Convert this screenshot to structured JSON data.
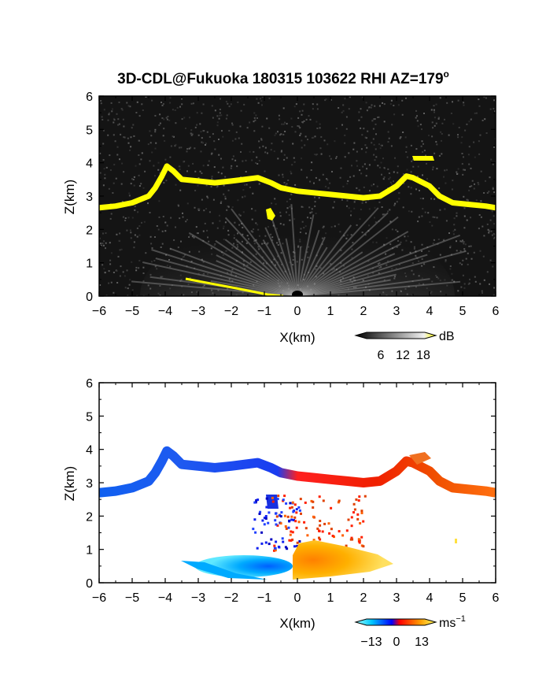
{
  "title": "3D-CDL@Fukuoka 180315 103622 RHI AZ=179",
  "title_superscript": "o",
  "chart_data": [
    {
      "type": "heatmap",
      "panel": "reflectivity",
      "xlabel": "X(km)",
      "ylabel": "Z(km)",
      "xlim": [
        -6,
        6
      ],
      "ylim": [
        0,
        6
      ],
      "xticks": [
        -6,
        -5,
        -4,
        -3,
        -2,
        -1,
        0,
        1,
        2,
        3,
        4,
        5,
        6
      ],
      "yticks": [
        0,
        1,
        2,
        3,
        4,
        5,
        6
      ],
      "cloud_base": [
        [
          -6.0,
          2.65
        ],
        [
          -5.5,
          2.7
        ],
        [
          -5.0,
          2.8
        ],
        [
          -4.5,
          3.0
        ],
        [
          -4.3,
          3.25
        ],
        [
          -4.1,
          3.6
        ],
        [
          -3.95,
          3.9
        ],
        [
          -3.75,
          3.75
        ],
        [
          -3.5,
          3.5
        ],
        [
          -3.0,
          3.45
        ],
        [
          -2.5,
          3.4
        ],
        [
          -2.0,
          3.45
        ],
        [
          -1.6,
          3.5
        ],
        [
          -1.2,
          3.55
        ],
        [
          -0.8,
          3.4
        ],
        [
          -0.5,
          3.25
        ],
        [
          0.0,
          3.15
        ],
        [
          0.5,
          3.1
        ],
        [
          1.0,
          3.05
        ],
        [
          1.5,
          3.0
        ],
        [
          2.0,
          2.95
        ],
        [
          2.5,
          3.0
        ],
        [
          3.0,
          3.3
        ],
        [
          3.3,
          3.6
        ],
        [
          3.5,
          3.55
        ],
        [
          4.0,
          3.3
        ],
        [
          4.3,
          3.0
        ],
        [
          4.7,
          2.8
        ],
        [
          5.2,
          2.75
        ],
        [
          5.7,
          2.7
        ],
        [
          6.0,
          2.65
        ]
      ],
      "colorbar": {
        "unit": "dB",
        "ticks": [
          "6",
          "12",
          "18"
        ]
      }
    },
    {
      "type": "heatmap",
      "panel": "doppler_velocity",
      "xlabel": "X(km)",
      "ylabel": "Z(km)",
      "xlim": [
        -6,
        6
      ],
      "ylim": [
        0,
        6
      ],
      "xticks": [
        -6,
        -5,
        -4,
        -3,
        -2,
        -1,
        0,
        1,
        2,
        3,
        4,
        5,
        6
      ],
      "yticks": [
        0,
        1,
        2,
        3,
        4,
        5,
        6
      ],
      "colorbar": {
        "unit": "ms",
        "unit_superscript": "−1",
        "ticks": [
          "−13",
          "0",
          "13"
        ]
      }
    }
  ]
}
